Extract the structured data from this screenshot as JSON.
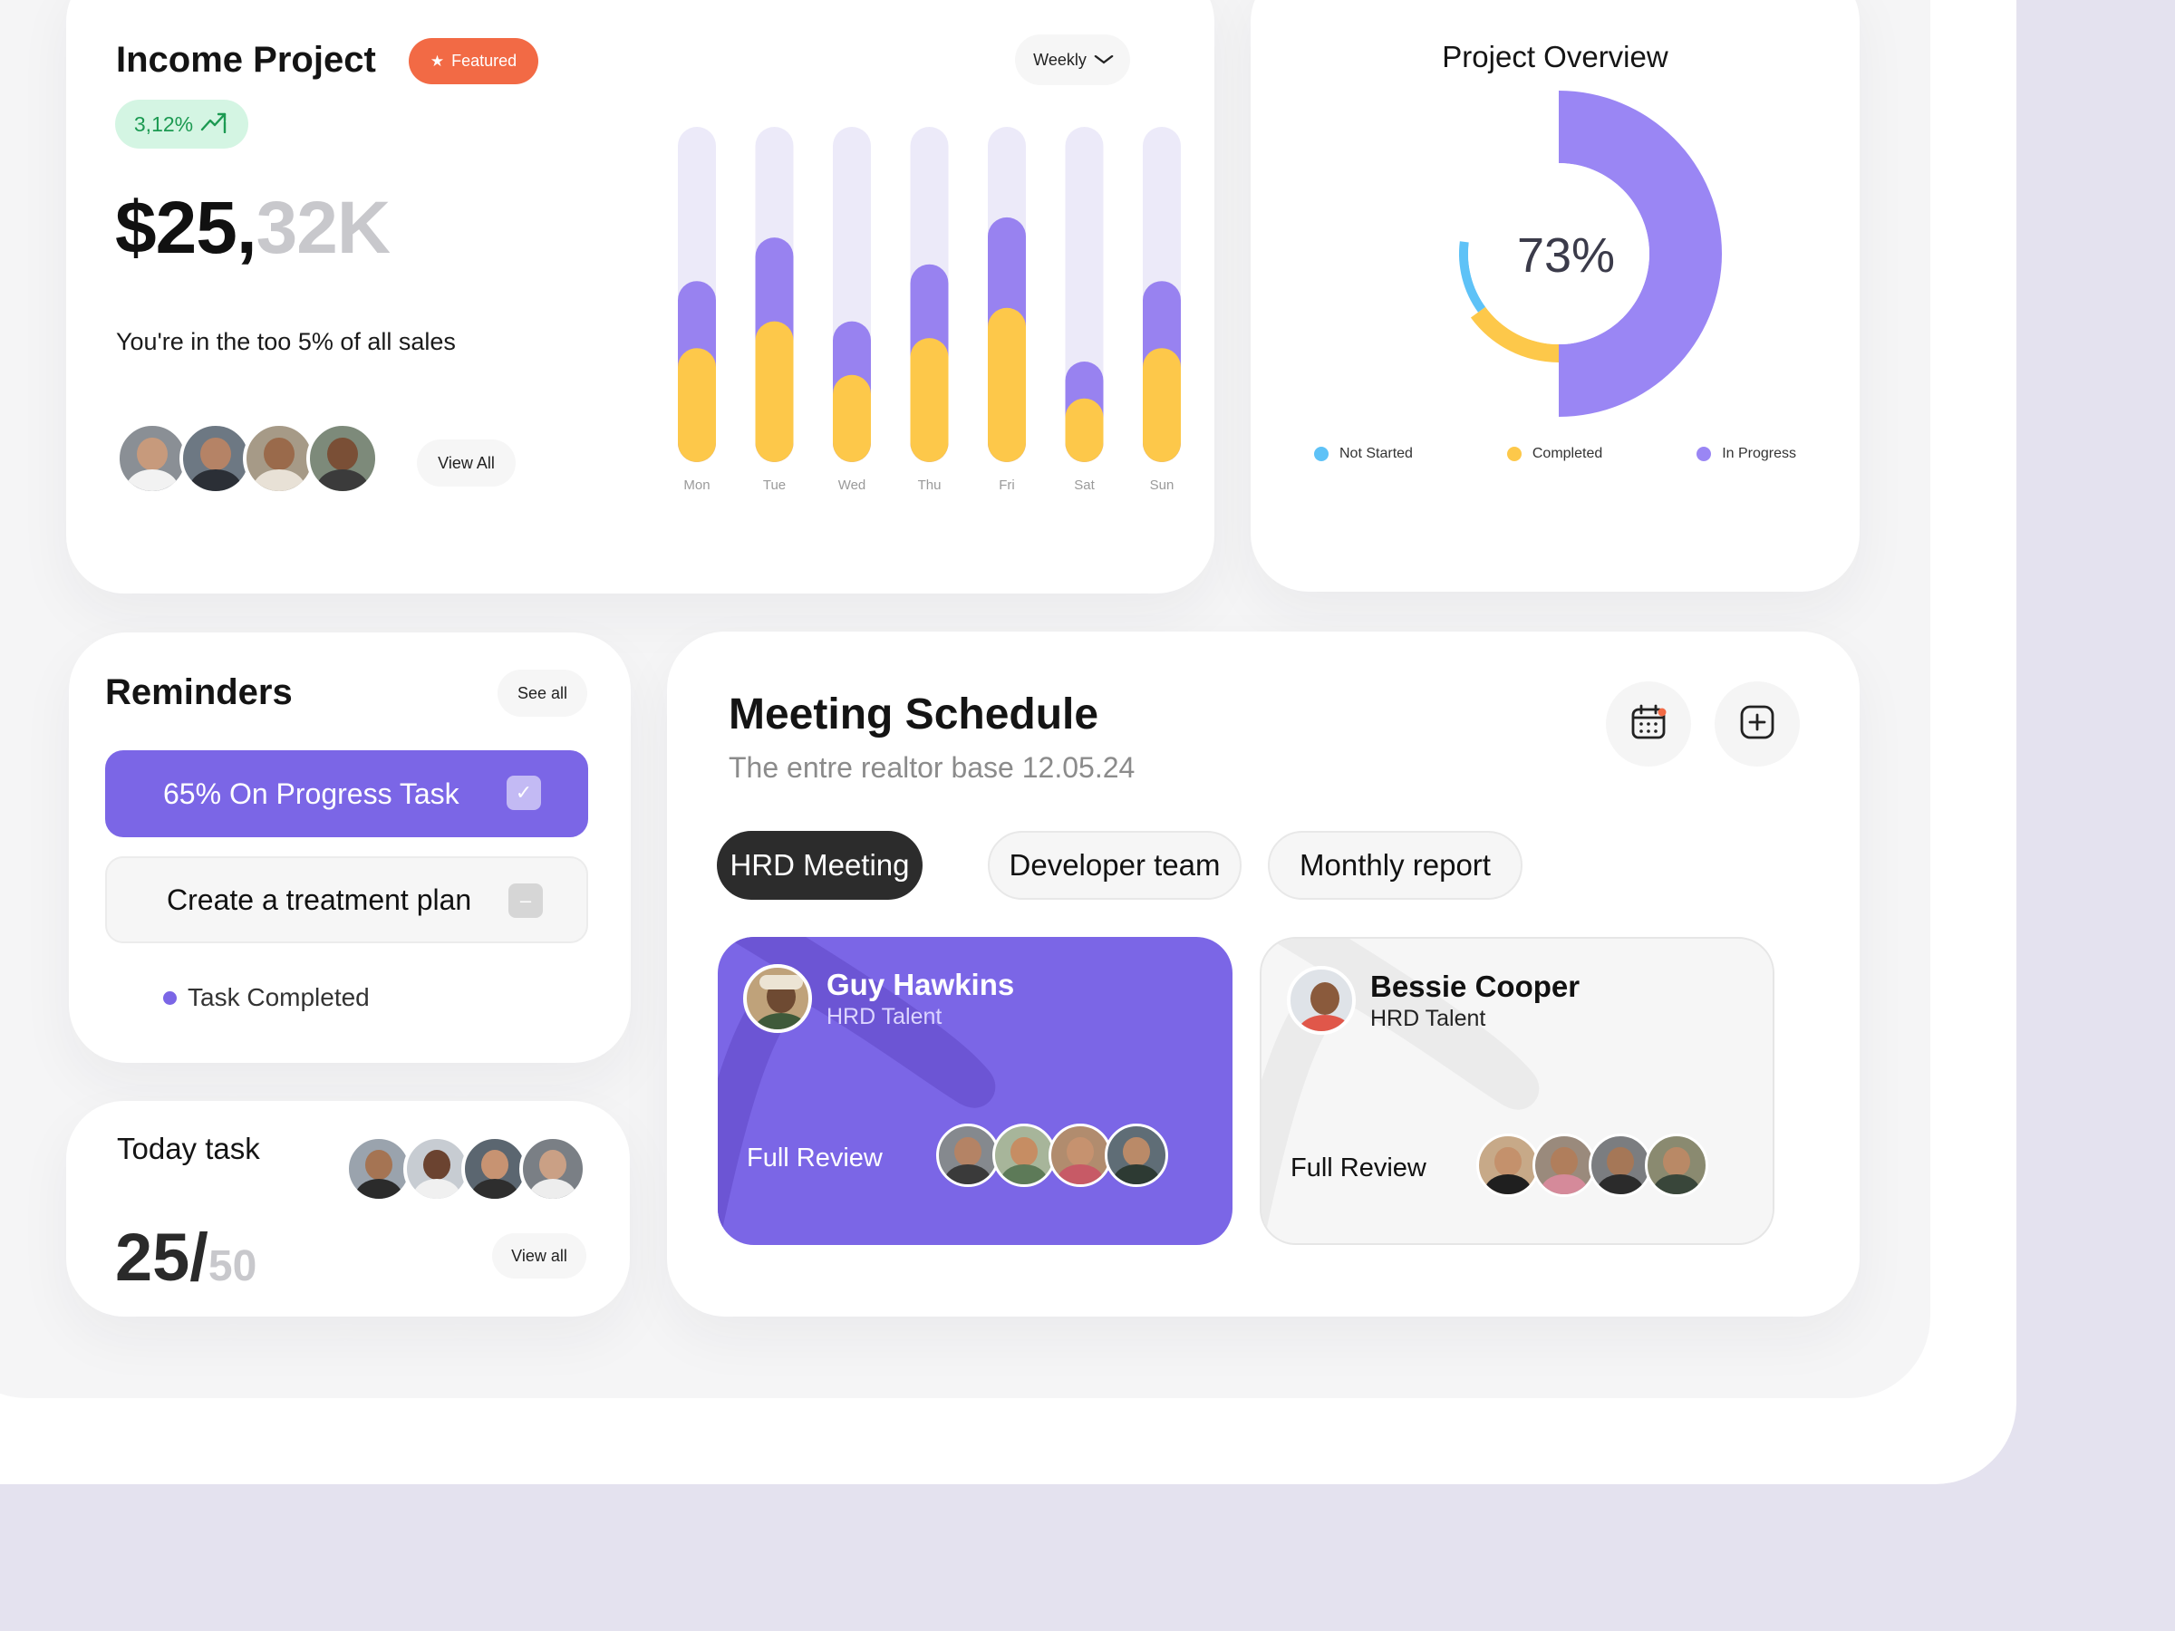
{
  "income": {
    "title": "Income Project",
    "featured_label": "Featured",
    "growth": "3,12%",
    "amount_main": "$25,",
    "amount_sub": "32K",
    "tagline": "You're in the too 5% of all sales",
    "period": "Weekly",
    "view_all": "View All"
  },
  "chart_data": {
    "type": "bar",
    "stacked": true,
    "categories": [
      "Mon",
      "Tue",
      "Wed",
      "Thu",
      "Fri",
      "Sat",
      "Sun"
    ],
    "series": [
      {
        "values": [
          34,
          42,
          26,
          37,
          46,
          19,
          34
        ],
        "color": "#fdc84a"
      },
      {
        "values": [
          20,
          25,
          16,
          22,
          27,
          11,
          20
        ],
        "color": "#9882f0"
      }
    ],
    "ylim": [
      0,
      100
    ],
    "track_color": "#eceaf9"
  },
  "overview": {
    "title": "Project Overview",
    "center_label": "73%",
    "chart_data": {
      "type": "pie",
      "segments": [
        {
          "label": "Not Started",
          "value": 12,
          "color": "#5ec2f7"
        },
        {
          "label": "Completed",
          "value": 15,
          "color": "#fdc84a"
        },
        {
          "label": "In Progress",
          "value": 50,
          "color": "#9a86f4"
        }
      ]
    }
  },
  "reminders": {
    "title": "Reminders",
    "see_all": "See all",
    "task_primary": "65% On Progress Task",
    "task_secondary": "Create a treatment plan",
    "completed_label": "Task Completed"
  },
  "today": {
    "title": "Today task",
    "done": "25/",
    "total": "50",
    "view_all": "View all"
  },
  "meeting": {
    "title": "Meeting Schedule",
    "subtitle": "The entre realtor base 12.05.24",
    "tabs": [
      "HRD Meeting",
      "Developer team",
      "Monthly report"
    ],
    "cards": [
      {
        "name": "Guy Hawkins",
        "role": "HRD Talent",
        "review": "Full Review"
      },
      {
        "name": "Bessie Cooper",
        "role": "HRD Talent",
        "review": "Full Review"
      }
    ]
  },
  "icons": {
    "calendar": "calendar-icon",
    "add": "add-square-icon",
    "check": "check-icon",
    "star": "star-icon",
    "trend": "trend-up-icon",
    "chevron": "chevron-down-icon"
  }
}
